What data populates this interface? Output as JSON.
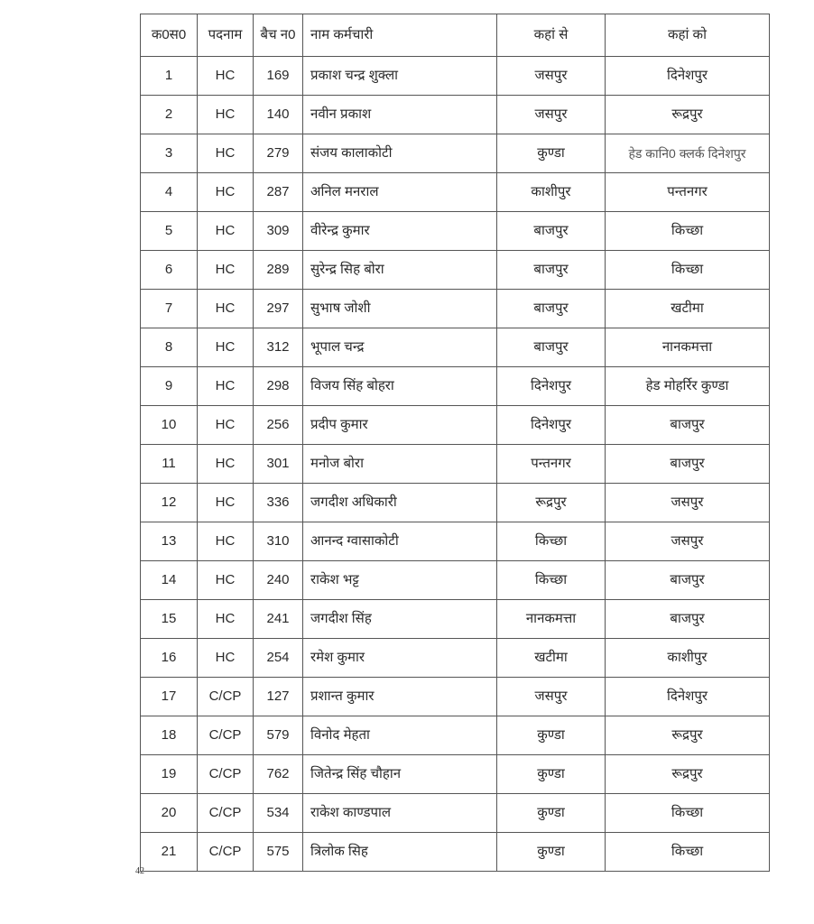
{
  "table": {
    "headers": [
      "क0स0",
      "पदनाम",
      "बैच न0",
      "नाम कर्मचारी",
      "कहां से",
      "कहां को"
    ],
    "rows": [
      [
        "1",
        "HC",
        "169",
        "प्रकाश चन्द्र शुक्ला",
        "जसपुर",
        "दिनेशपुर"
      ],
      [
        "2",
        "HC",
        "140",
        "नवीन प्रकाश",
        "जसपुर",
        "रूद्रपुर"
      ],
      [
        "3",
        "HC",
        "279",
        "संजय कालाकोटी",
        "कुण्डा",
        "हेड कानि0 क्लर्क दिनेशपुर"
      ],
      [
        "4",
        "HC",
        "287",
        "अनिल मनराल",
        "काशीपुर",
        "पन्तनगर"
      ],
      [
        "5",
        "HC",
        "309",
        "वीरेन्द्र कुमार",
        "बाजपुर",
        "किच्छा"
      ],
      [
        "6",
        "HC",
        "289",
        "सुरेन्द्र सिह बोरा",
        "बाजपुर",
        "किच्छा"
      ],
      [
        "7",
        "HC",
        "297",
        "सुभाष जोशी",
        "बाजपुर",
        "खटीमा"
      ],
      [
        "8",
        "HC",
        "312",
        "भूपाल चन्द्र",
        "बाजपुर",
        "नानकमत्ता"
      ],
      [
        "9",
        "HC",
        "298",
        "विजय सिंह बोहरा",
        "दिनेशपुर",
        "हेड मोहर्रिर कुण्डा"
      ],
      [
        "10",
        "HC",
        "256",
        "प्रदीप कुमार",
        "दिनेशपुर",
        "बाजपुर"
      ],
      [
        "11",
        "HC",
        "301",
        "मनोज बोरा",
        "पन्तनगर",
        "बाजपुर"
      ],
      [
        "12",
        "HC",
        "336",
        "जगदीश अधिकारी",
        "रूद्रपुर",
        "जसपुर"
      ],
      [
        "13",
        "HC",
        "310",
        "आनन्द ग्वासाकोटी",
        "किच्छा",
        "जसपुर"
      ],
      [
        "14",
        "HC",
        "240",
        "राकेश भट्ट",
        "किच्छा",
        "बाजपुर"
      ],
      [
        "15",
        "HC",
        "241",
        "जगदीश सिंह",
        "नानकमत्ता",
        "बाजपुर"
      ],
      [
        "16",
        "HC",
        "254",
        "रमेश कुमार",
        "खटीमा",
        "काशीपुर"
      ],
      [
        "17",
        "C/CP",
        "127",
        "प्रशान्त कुमार",
        "जसपुर",
        "दिनेशपुर"
      ],
      [
        "18",
        "C/CP",
        "579",
        "विनोद मेहता",
        "कुण्डा",
        "रूद्रपुर"
      ],
      [
        "19",
        "C/CP",
        "762",
        "जितेन्द्र सिंह चौहान",
        "कुण्डा",
        "रूद्रपुर"
      ],
      [
        "20",
        "C/CP",
        "534",
        "राकेश काण्डपाल",
        "कुण्डा",
        "किच्छा"
      ],
      [
        "21",
        "C/CP",
        "575",
        "त्रिलोक सिह",
        "कुण्डा",
        "किच्छा"
      ]
    ]
  },
  "footer": {
    "page_number": "42"
  }
}
